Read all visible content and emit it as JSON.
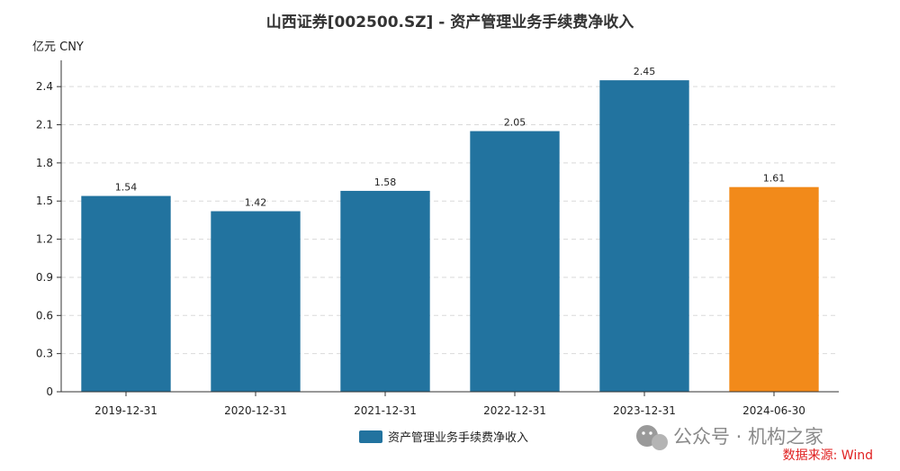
{
  "chart_data": {
    "type": "bar",
    "title": "山西证券[002500.SZ] - 资产管理业务手续费净收入",
    "unit_label": "亿元  CNY",
    "categories": [
      "2019-12-31",
      "2020-12-31",
      "2021-12-31",
      "2022-12-31",
      "2023-12-31",
      "2024-06-30"
    ],
    "series": [
      {
        "name": "资产管理业务手续费净收入",
        "values": [
          1.54,
          1.42,
          1.58,
          2.05,
          2.45,
          1.61
        ]
      }
    ],
    "data_labels": [
      "1.54",
      "1.42",
      "1.58",
      "2.05",
      "2.45",
      "1.61"
    ],
    "bar_colors": [
      "#22739f",
      "#22739f",
      "#22739f",
      "#22739f",
      "#22739f",
      "#f28a1a"
    ],
    "legend_color": "#22739f",
    "ylim": [
      0,
      2.55
    ],
    "yticks": [
      0,
      0.3,
      0.6,
      0.9,
      1.2,
      1.5,
      1.8,
      2.1,
      2.4
    ],
    "ytick_labels": [
      "0",
      "0.3",
      "0.6",
      "0.9",
      "1.2",
      "1.5",
      "1.8",
      "2.1",
      "2.4"
    ],
    "grid": true,
    "legend_position": "bottom-center"
  },
  "watermark": "公众号 · 机构之家",
  "source": "数据来源: Wind"
}
